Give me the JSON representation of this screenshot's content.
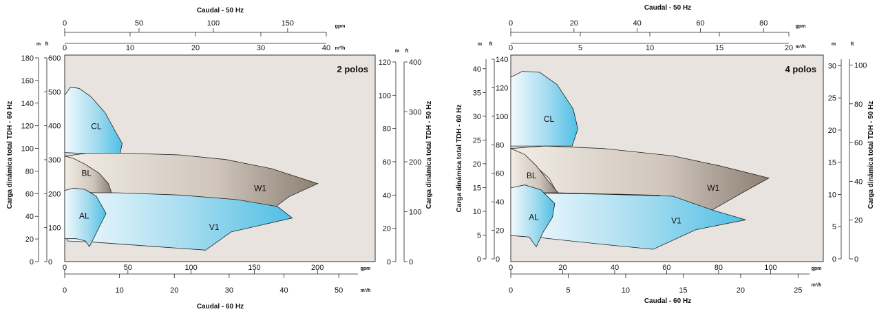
{
  "chart_data": [
    {
      "type": "area",
      "title": "2 polos",
      "top_axis_title": "Caudal - 50 Hz",
      "bottom_axis_title": "Caudal - 60 Hz",
      "left_axis_title": "Carga dinámica total TDH - 60 Hz",
      "right_axis_title": "Carga dinámica total TDH - 50 Hz",
      "top_gpm_ticks": [
        "0",
        "50",
        "100",
        "150"
      ],
      "top_m3h_ticks": [
        "0",
        "10",
        "20",
        "30",
        "40"
      ],
      "bottom_gpm_ticks": [
        "0",
        "50",
        "100",
        "150",
        "200"
      ],
      "bottom_m3h_ticks": [
        "0",
        "10",
        "20",
        "30",
        "40",
        "50"
      ],
      "left_m_ticks": [
        "0",
        "20",
        "40",
        "60",
        "80",
        "100",
        "120",
        "140",
        "160",
        "180"
      ],
      "left_ft_ticks": [
        "0",
        "100",
        "200",
        "300",
        "400",
        "500",
        "600"
      ],
      "right_m_ticks": [
        "0",
        "20",
        "40",
        "60",
        "80",
        "100",
        "120"
      ],
      "right_ft_ticks": [
        "0",
        "100",
        "200",
        "300",
        "400"
      ],
      "xlim_m3h_60": [
        0,
        54
      ],
      "ylim_m_60": [
        0,
        180
      ],
      "regions": [
        {
          "name": "CL",
          "label_x": 5.5,
          "label_y": 118,
          "color": "blue",
          "outline": [
            [
              0,
              95
            ],
            [
              0,
              145
            ],
            [
              1,
              152
            ],
            [
              2.5,
              151
            ],
            [
              4.5,
              144
            ],
            [
              7,
              130
            ],
            [
              9.2,
              110
            ],
            [
              10,
              103
            ],
            [
              9.6,
              93
            ],
            [
              5,
              94
            ],
            [
              0,
              95
            ]
          ]
        },
        {
          "name": "W1",
          "label_x": 34,
          "label_y": 64,
          "color": "grey",
          "outline": [
            [
              0,
              92
            ],
            [
              4,
              94.5
            ],
            [
              10,
              94.5
            ],
            [
              20,
              93
            ],
            [
              28,
              89
            ],
            [
              36,
              81
            ],
            [
              44,
              68
            ],
            [
              39,
              56.5
            ],
            [
              34,
              38
            ],
            [
              25,
              40
            ],
            [
              9,
              42
            ],
            [
              6,
              48
            ],
            [
              5.2,
              56
            ],
            [
              3,
              60
            ],
            [
              0,
              62
            ]
          ]
        },
        {
          "name": "BL",
          "label_x": 3.8,
          "label_y": 77,
          "color": "grey",
          "outline": [
            [
              0,
              63
            ],
            [
              0,
              92
            ],
            [
              1.5,
              90
            ],
            [
              3.5,
              85
            ],
            [
              6,
              77
            ],
            [
              7.6,
              68
            ],
            [
              8.2,
              59
            ],
            [
              5,
              60
            ],
            [
              0,
              62
            ]
          ]
        },
        {
          "name": "V1",
          "label_x": 26,
          "label_y": 30,
          "color": "blue",
          "outline": [
            [
              0.5,
              60
            ],
            [
              9,
              60
            ],
            [
              20,
              58
            ],
            [
              30,
              54
            ],
            [
              37,
              48
            ],
            [
              39.6,
              38
            ],
            [
              29,
              26
            ],
            [
              24.5,
              10
            ],
            [
              16,
              13
            ],
            [
              5,
              17
            ],
            [
              0.5,
              18
            ]
          ]
        },
        {
          "name": "AL",
          "label_x": 3.4,
          "label_y": 40,
          "color": "blue",
          "outline": [
            [
              0,
              18
            ],
            [
              0,
              62
            ],
            [
              1.5,
              64
            ],
            [
              3.5,
              63
            ],
            [
              5.5,
              57
            ],
            [
              7.2,
              42
            ],
            [
              6,
              30
            ],
            [
              4.3,
              13
            ],
            [
              3.6,
              18
            ],
            [
              2,
              20
            ],
            [
              0,
              20
            ]
          ]
        }
      ]
    },
    {
      "type": "area",
      "title": "4 polos",
      "top_axis_title": "Caudal - 50 Hz",
      "bottom_axis_title": "Caudal - 60 Hz",
      "left_axis_title": "Carga dinámica total TDH - 60 Hz",
      "right_axis_title": "Carga dinámica total TDH - 50 Hz",
      "top_gpm_ticks": [
        "0",
        "20",
        "40",
        "60",
        "80"
      ],
      "top_m3h_ticks": [
        "0",
        "5",
        "10",
        "15",
        "20"
      ],
      "bottom_gpm_ticks": [
        "0",
        "20",
        "40",
        "60",
        "80",
        "100"
      ],
      "bottom_m3h_ticks": [
        "0",
        "5",
        "10",
        "15",
        "20",
        "25"
      ],
      "left_m_ticks": [
        "0",
        "5",
        "10",
        "15",
        "20",
        "25",
        "30",
        "35",
        "40"
      ],
      "left_ft_ticks": [
        "0",
        "20",
        "40",
        "60",
        "80",
        "100",
        "120",
        "140"
      ],
      "right_m_ticks": [
        "0",
        "5",
        "10",
        "15",
        "20",
        "25",
        "30"
      ],
      "right_ft_ticks": [
        "0",
        "20",
        "40",
        "60",
        "80",
        "100"
      ],
      "xlim_m3h_60": [
        0,
        27
      ],
      "ylim_m_60": [
        0,
        42
      ],
      "regions": [
        {
          "name": "CL",
          "label_x": 3.3,
          "label_y": 29,
          "color": "blue",
          "outline": [
            [
              0,
              23.5
            ],
            [
              0,
              37.5
            ],
            [
              1,
              38.7
            ],
            [
              2.5,
              38.5
            ],
            [
              4,
              36
            ],
            [
              5.4,
              31
            ],
            [
              5.8,
              27
            ],
            [
              5.3,
              23.5
            ],
            [
              0,
              23.5
            ]
          ]
        },
        {
          "name": "W1",
          "label_x": 17.5,
          "label_y": 15,
          "color": "grey",
          "outline": [
            [
              0,
              23
            ],
            [
              3,
              23.5
            ],
            [
              8,
              23
            ],
            [
              14,
              21.5
            ],
            [
              18,
              19.5
            ],
            [
              22.3,
              17
            ],
            [
              20,
              14
            ],
            [
              17.4,
              10.5
            ],
            [
              12.8,
              13.5
            ],
            [
              4,
              14
            ],
            [
              3.3,
              17
            ],
            [
              1.6,
              20.5
            ],
            [
              0,
              23
            ]
          ]
        },
        {
          "name": "BL",
          "label_x": 1.8,
          "label_y": 17.5,
          "color": "grey",
          "outline": [
            [
              0,
              14
            ],
            [
              0,
              23
            ],
            [
              1.2,
              21.8
            ],
            [
              2.2,
              19.5
            ],
            [
              3.2,
              16.5
            ],
            [
              4.1,
              14
            ],
            [
              0,
              14
            ]
          ]
        },
        {
          "name": "V1",
          "label_x": 14.3,
          "label_y": 8.3,
          "color": "blue",
          "outline": [
            [
              1,
              14
            ],
            [
              8,
              13.7
            ],
            [
              14,
              13.3
            ],
            [
              17.4,
              10.5
            ],
            [
              20.3,
              8.5
            ],
            [
              16,
              6.5
            ],
            [
              12.3,
              2.5
            ],
            [
              8,
              3.5
            ],
            [
              4,
              4.5
            ],
            [
              2.1,
              5
            ],
            [
              1,
              6
            ]
          ]
        },
        {
          "name": "AL",
          "label_x": 2.0,
          "label_y": 9,
          "color": "blue",
          "outline": [
            [
              0,
              5
            ],
            [
              0,
              15
            ],
            [
              1.2,
              15.6
            ],
            [
              2.6,
              14.6
            ],
            [
              3.8,
              11.8
            ],
            [
              3.6,
              9
            ],
            [
              2.8,
              6
            ],
            [
              2.2,
              3
            ],
            [
              1.6,
              5
            ],
            [
              0,
              5.3
            ]
          ]
        }
      ]
    }
  ]
}
